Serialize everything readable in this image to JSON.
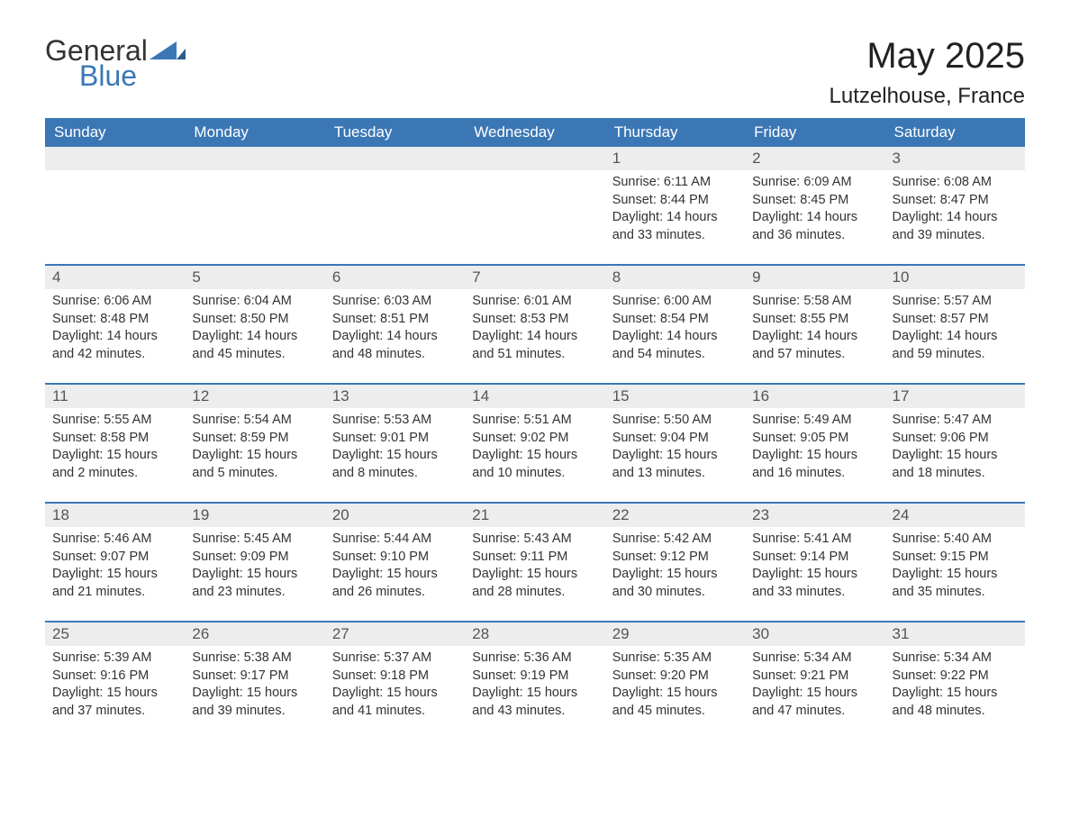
{
  "logo": {
    "general": "General",
    "blue": "Blue"
  },
  "title": "May 2025",
  "location": "Lutzelhouse, France",
  "colors": {
    "header_bg": "#3b77b5",
    "header_text": "#ffffff",
    "daynum_bg": "#ededed",
    "text": "#333333",
    "border": "#3b77b5",
    "logo_blue": "#3b77b5"
  },
  "dow": [
    "Sunday",
    "Monday",
    "Tuesday",
    "Wednesday",
    "Thursday",
    "Friday",
    "Saturday"
  ],
  "weeks": [
    [
      {
        "n": "",
        "sr": "",
        "ss": "",
        "dl": ""
      },
      {
        "n": "",
        "sr": "",
        "ss": "",
        "dl": ""
      },
      {
        "n": "",
        "sr": "",
        "ss": "",
        "dl": ""
      },
      {
        "n": "",
        "sr": "",
        "ss": "",
        "dl": ""
      },
      {
        "n": "1",
        "sr": "6:11 AM",
        "ss": "8:44 PM",
        "dl": "14 hours and 33 minutes."
      },
      {
        "n": "2",
        "sr": "6:09 AM",
        "ss": "8:45 PM",
        "dl": "14 hours and 36 minutes."
      },
      {
        "n": "3",
        "sr": "6:08 AM",
        "ss": "8:47 PM",
        "dl": "14 hours and 39 minutes."
      }
    ],
    [
      {
        "n": "4",
        "sr": "6:06 AM",
        "ss": "8:48 PM",
        "dl": "14 hours and 42 minutes."
      },
      {
        "n": "5",
        "sr": "6:04 AM",
        "ss": "8:50 PM",
        "dl": "14 hours and 45 minutes."
      },
      {
        "n": "6",
        "sr": "6:03 AM",
        "ss": "8:51 PM",
        "dl": "14 hours and 48 minutes."
      },
      {
        "n": "7",
        "sr": "6:01 AM",
        "ss": "8:53 PM",
        "dl": "14 hours and 51 minutes."
      },
      {
        "n": "8",
        "sr": "6:00 AM",
        "ss": "8:54 PM",
        "dl": "14 hours and 54 minutes."
      },
      {
        "n": "9",
        "sr": "5:58 AM",
        "ss": "8:55 PM",
        "dl": "14 hours and 57 minutes."
      },
      {
        "n": "10",
        "sr": "5:57 AM",
        "ss": "8:57 PM",
        "dl": "14 hours and 59 minutes."
      }
    ],
    [
      {
        "n": "11",
        "sr": "5:55 AM",
        "ss": "8:58 PM",
        "dl": "15 hours and 2 minutes."
      },
      {
        "n": "12",
        "sr": "5:54 AM",
        "ss": "8:59 PM",
        "dl": "15 hours and 5 minutes."
      },
      {
        "n": "13",
        "sr": "5:53 AM",
        "ss": "9:01 PM",
        "dl": "15 hours and 8 minutes."
      },
      {
        "n": "14",
        "sr": "5:51 AM",
        "ss": "9:02 PM",
        "dl": "15 hours and 10 minutes."
      },
      {
        "n": "15",
        "sr": "5:50 AM",
        "ss": "9:04 PM",
        "dl": "15 hours and 13 minutes."
      },
      {
        "n": "16",
        "sr": "5:49 AM",
        "ss": "9:05 PM",
        "dl": "15 hours and 16 minutes."
      },
      {
        "n": "17",
        "sr": "5:47 AM",
        "ss": "9:06 PM",
        "dl": "15 hours and 18 minutes."
      }
    ],
    [
      {
        "n": "18",
        "sr": "5:46 AM",
        "ss": "9:07 PM",
        "dl": "15 hours and 21 minutes."
      },
      {
        "n": "19",
        "sr": "5:45 AM",
        "ss": "9:09 PM",
        "dl": "15 hours and 23 minutes."
      },
      {
        "n": "20",
        "sr": "5:44 AM",
        "ss": "9:10 PM",
        "dl": "15 hours and 26 minutes."
      },
      {
        "n": "21",
        "sr": "5:43 AM",
        "ss": "9:11 PM",
        "dl": "15 hours and 28 minutes."
      },
      {
        "n": "22",
        "sr": "5:42 AM",
        "ss": "9:12 PM",
        "dl": "15 hours and 30 minutes."
      },
      {
        "n": "23",
        "sr": "5:41 AM",
        "ss": "9:14 PM",
        "dl": "15 hours and 33 minutes."
      },
      {
        "n": "24",
        "sr": "5:40 AM",
        "ss": "9:15 PM",
        "dl": "15 hours and 35 minutes."
      }
    ],
    [
      {
        "n": "25",
        "sr": "5:39 AM",
        "ss": "9:16 PM",
        "dl": "15 hours and 37 minutes."
      },
      {
        "n": "26",
        "sr": "5:38 AM",
        "ss": "9:17 PM",
        "dl": "15 hours and 39 minutes."
      },
      {
        "n": "27",
        "sr": "5:37 AM",
        "ss": "9:18 PM",
        "dl": "15 hours and 41 minutes."
      },
      {
        "n": "28",
        "sr": "5:36 AM",
        "ss": "9:19 PM",
        "dl": "15 hours and 43 minutes."
      },
      {
        "n": "29",
        "sr": "5:35 AM",
        "ss": "9:20 PM",
        "dl": "15 hours and 45 minutes."
      },
      {
        "n": "30",
        "sr": "5:34 AM",
        "ss": "9:21 PM",
        "dl": "15 hours and 47 minutes."
      },
      {
        "n": "31",
        "sr": "5:34 AM",
        "ss": "9:22 PM",
        "dl": "15 hours and 48 minutes."
      }
    ]
  ],
  "labels": {
    "sunrise": "Sunrise: ",
    "sunset": "Sunset: ",
    "daylight": "Daylight: "
  }
}
